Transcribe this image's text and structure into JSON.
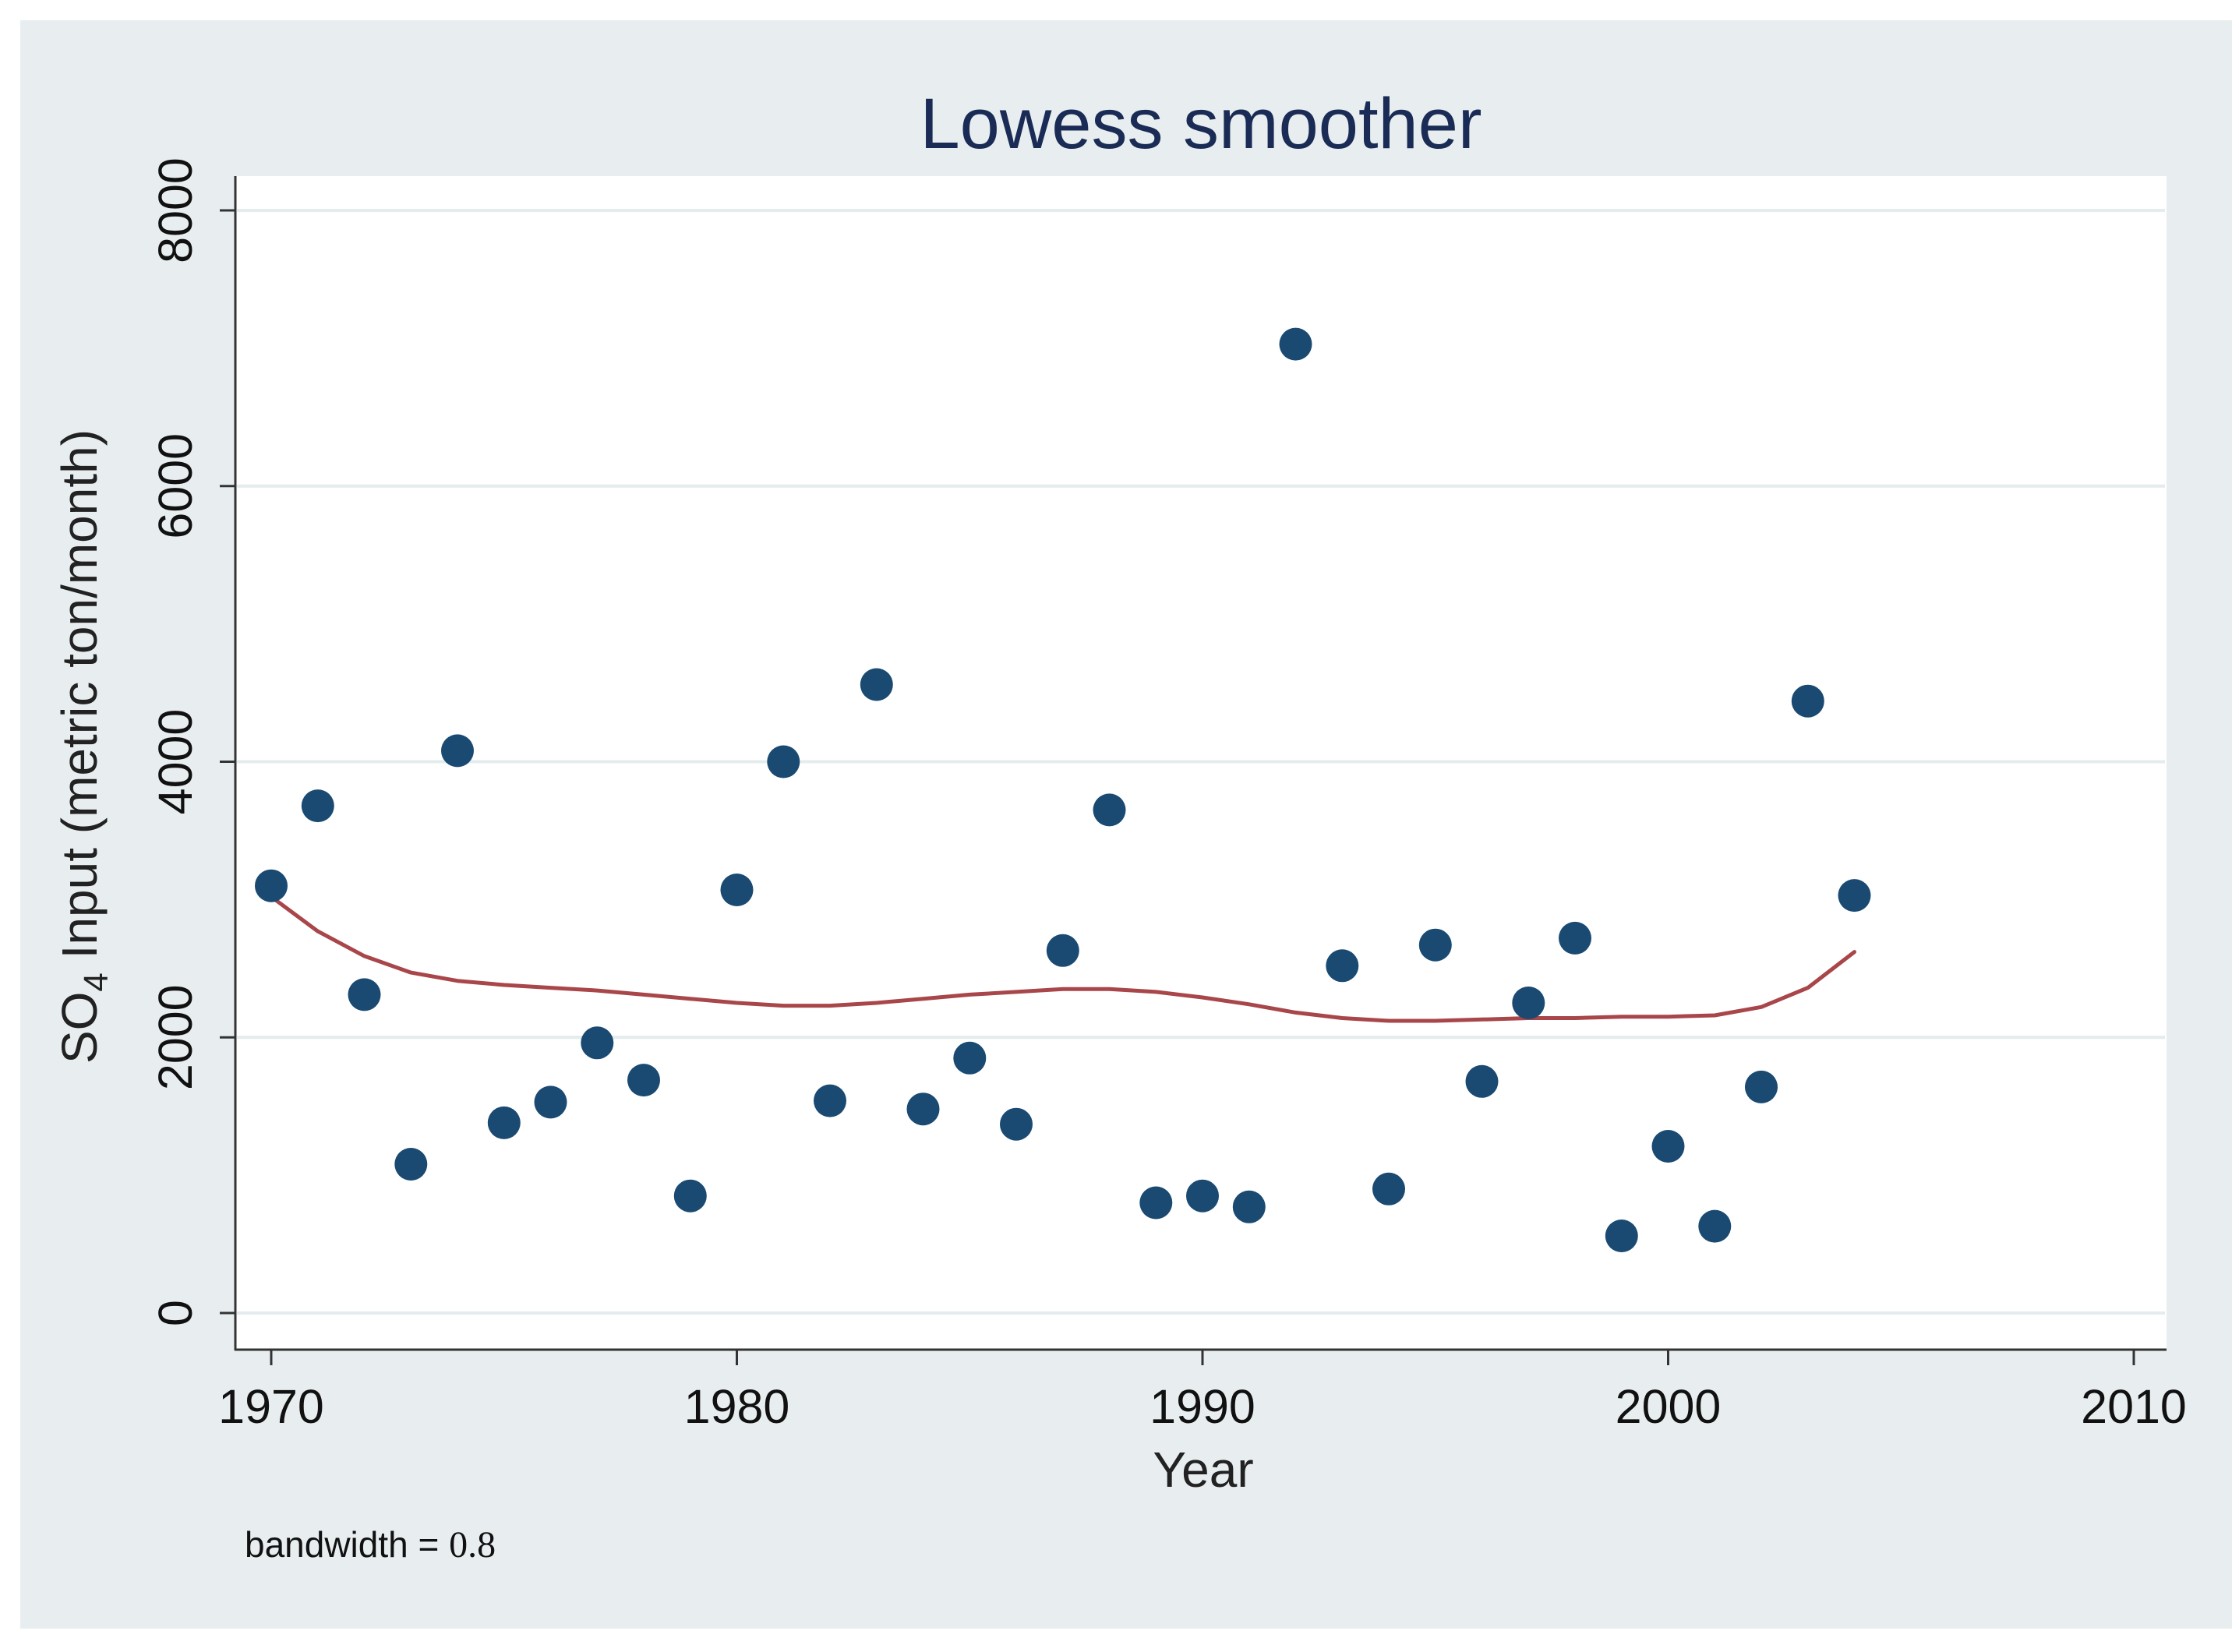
{
  "chart_data": {
    "type": "scatter",
    "title": "Lowess smoother",
    "xlabel": "Year",
    "ylabel": "SO4 Input (metric ton/month)",
    "ylabel_parts": {
      "pre": "SO",
      "sub": "4",
      "post": " Input (metric ton/month)"
    },
    "xlim": [
      1970,
      2010
    ],
    "ylim": [
      0,
      8000
    ],
    "xticks": [
      "1970",
      "1980",
      "1990",
      "2000",
      "2010"
    ],
    "yticks": [
      "0",
      "2000",
      "4000",
      "6000",
      "8000"
    ],
    "grid": true,
    "series": [
      {
        "name": "SO4 Input",
        "kind": "scatter",
        "x": [
          1970,
          1971,
          1972,
          1973,
          1974,
          1975,
          1976,
          1977,
          1978,
          1979,
          1980,
          1981,
          1982,
          1983,
          1984,
          1985,
          1986,
          1987,
          1988,
          1989,
          1990,
          1991,
          1992,
          1993,
          1994,
          1995,
          1996,
          1997,
          1998,
          1999,
          2000,
          2001,
          2002,
          2003,
          2004
        ],
        "y": [
          3100,
          3680,
          2310,
          1080,
          4080,
          1380,
          1530,
          1960,
          1690,
          850,
          3070,
          4000,
          1540,
          4560,
          1480,
          1850,
          1370,
          2630,
          3650,
          800,
          850,
          770,
          7030,
          2520,
          900,
          2670,
          1680,
          2250,
          2720,
          560,
          1210,
          630,
          1640,
          4440,
          3030
        ]
      },
      {
        "name": "Lowess smoother",
        "kind": "line",
        "x": [
          1970,
          1971,
          1972,
          1973,
          1974,
          1975,
          1976,
          1977,
          1978,
          1979,
          1980,
          1981,
          1982,
          1983,
          1984,
          1985,
          1986,
          1987,
          1988,
          1989,
          1990,
          1991,
          1992,
          1993,
          1994,
          1995,
          1996,
          1997,
          1998,
          1999,
          2000,
          2001,
          2002,
          2003,
          2004
        ],
        "y": [
          3020,
          2770,
          2590,
          2470,
          2410,
          2380,
          2360,
          2340,
          2310,
          2280,
          2250,
          2230,
          2230,
          2250,
          2280,
          2310,
          2330,
          2350,
          2350,
          2330,
          2290,
          2240,
          2180,
          2140,
          2120,
          2120,
          2130,
          2140,
          2140,
          2150,
          2150,
          2160,
          2220,
          2360,
          2620
        ]
      }
    ],
    "note_label": "bandwidth = ",
    "note_value": "0.8",
    "colors": {
      "outer_bg": "#e8eef0",
      "plot_bg": "#ffffff",
      "grid": "#e4ecee",
      "marker": "#1a4a72",
      "lowess": "#a8464a",
      "axis": "#333333",
      "title": "#1a2b55"
    }
  }
}
